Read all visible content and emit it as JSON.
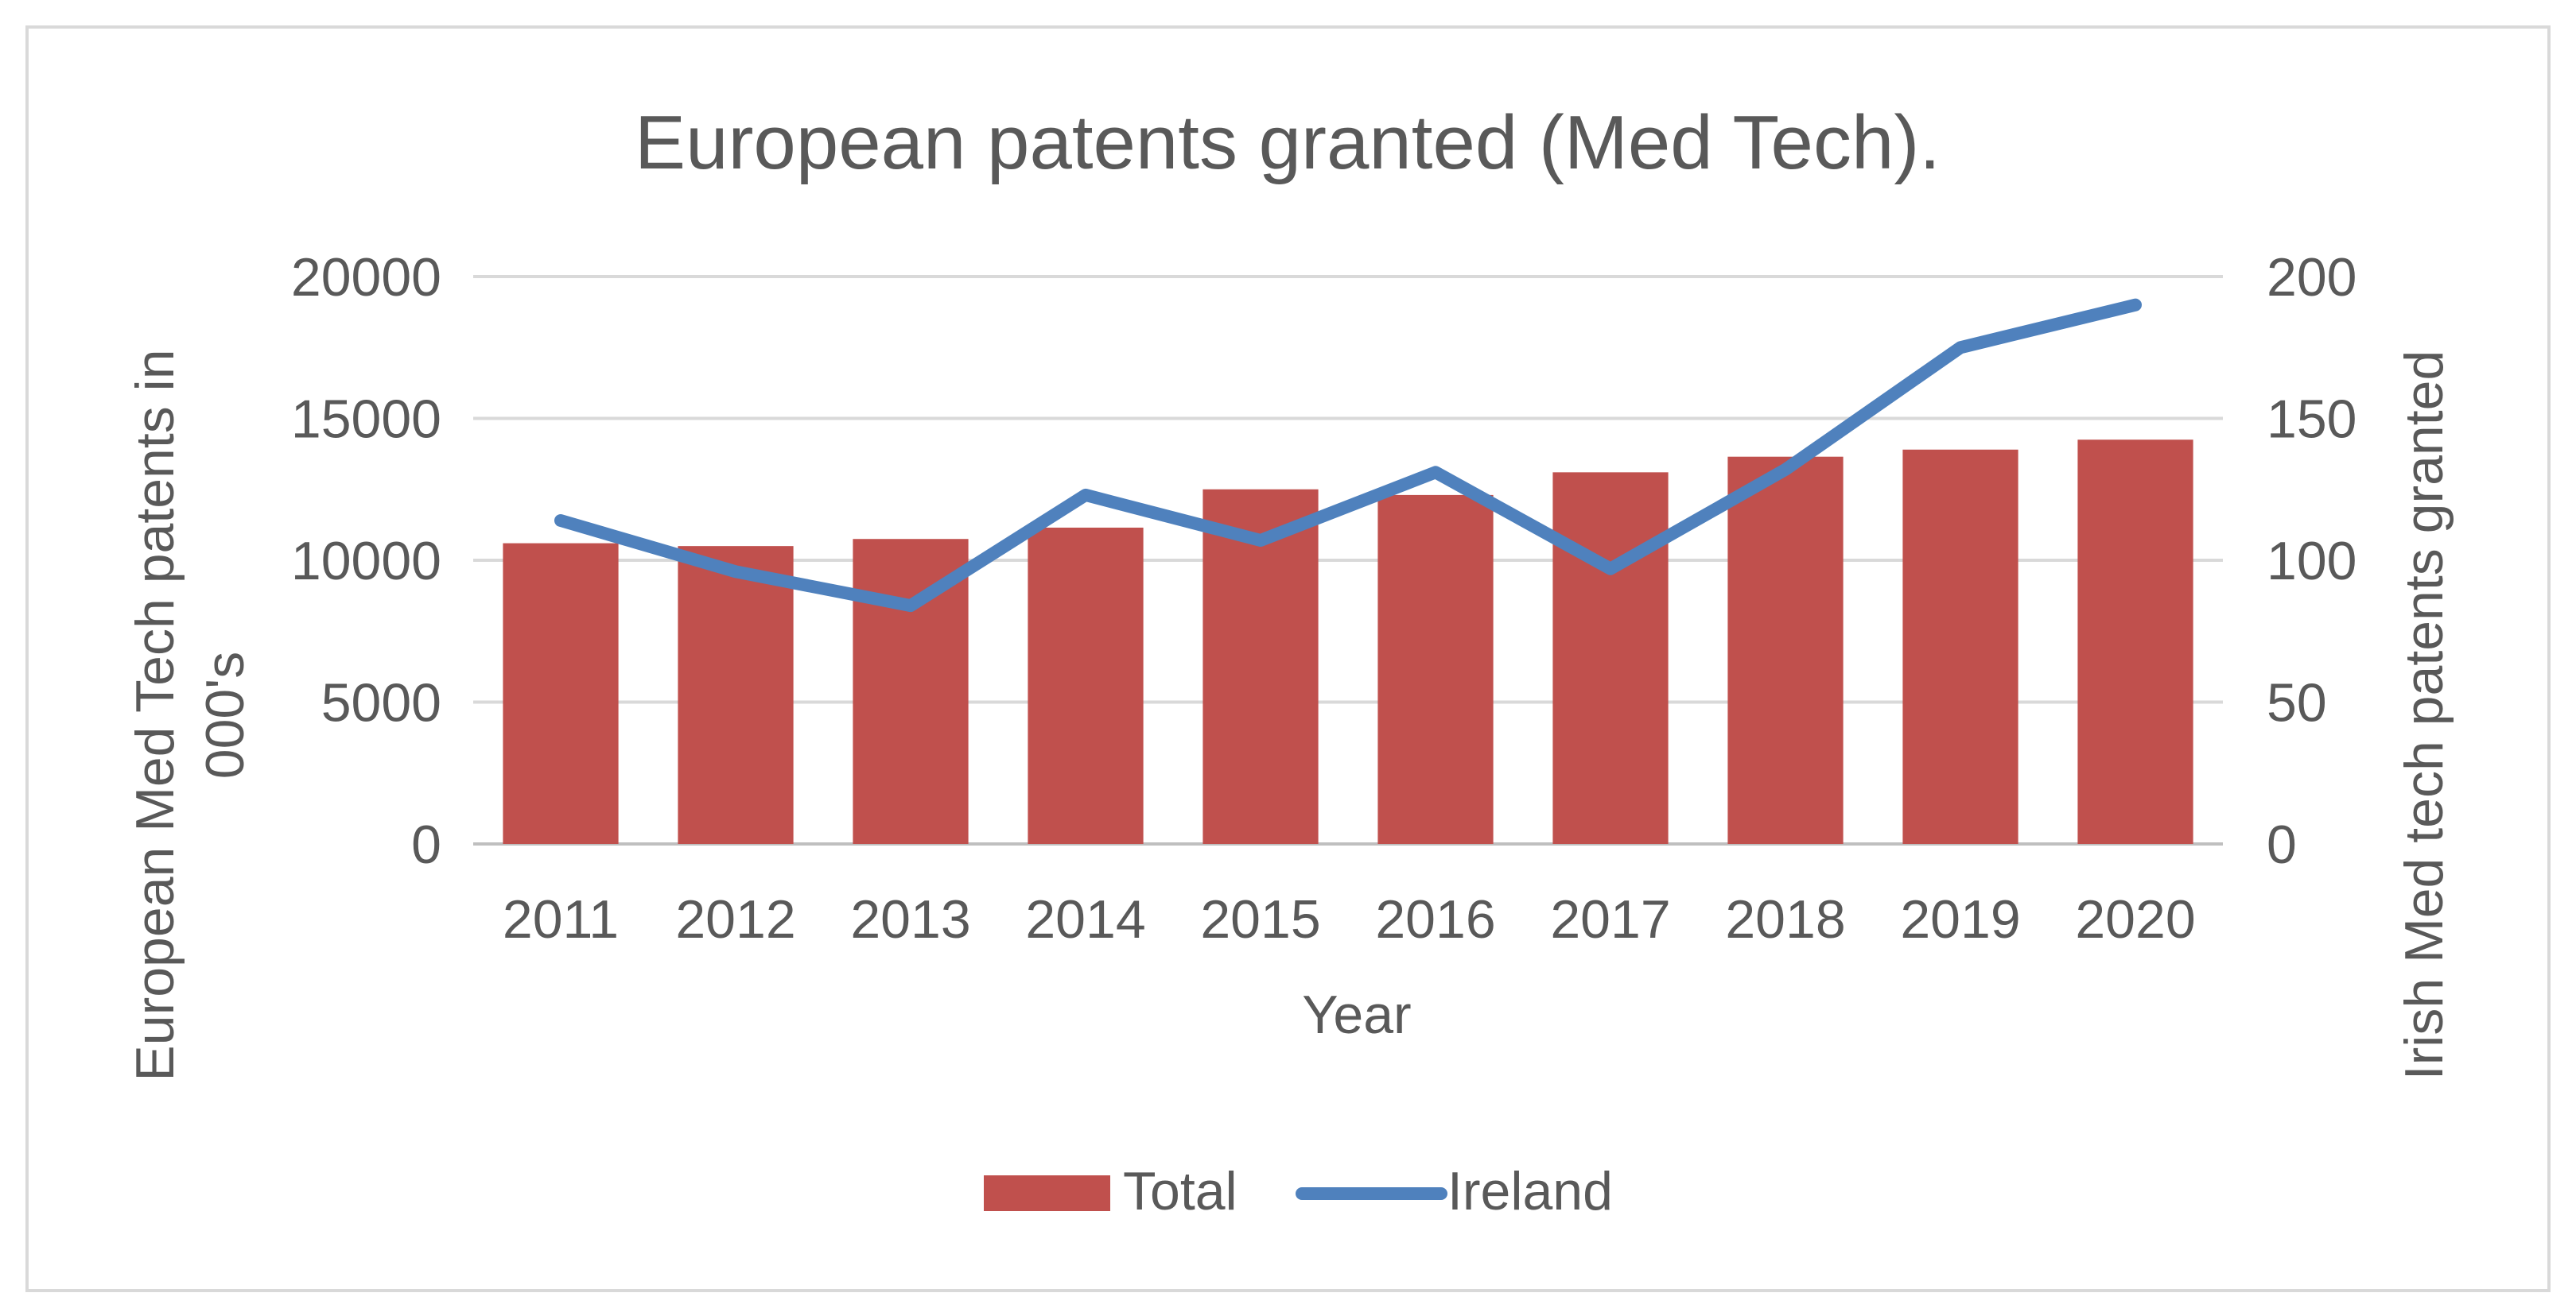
{
  "chart_data": {
    "type": "bar",
    "title": "European patents granted (Med Tech).",
    "xlabel": "Year",
    "ylabel": "European  Med Tech patents in 000's",
    "ylabel_right": "Irish Med tech patents granted",
    "categories": [
      "2011",
      "2012",
      "2013",
      "2014",
      "2015",
      "2016",
      "2017",
      "2018",
      "2019",
      "2020"
    ],
    "series": [
      {
        "name": "Total",
        "type": "bar",
        "axis": "left",
        "color": "#C0504D",
        "values": [
          10600,
          10500,
          10750,
          11150,
          12500,
          12300,
          13100,
          13650,
          13900,
          14250
        ]
      },
      {
        "name": "Ireland",
        "type": "line",
        "axis": "right",
        "color": "#4F81BD",
        "values": [
          114,
          96,
          84,
          123,
          107,
          131,
          97,
          132,
          175,
          190
        ]
      }
    ],
    "ylim": [
      0,
      20000
    ],
    "yticks": [
      "0",
      "5000",
      "10000",
      "15000",
      "20000"
    ],
    "ylim_right": [
      0,
      200
    ],
    "yticks_right": [
      "0",
      "50",
      "100",
      "150",
      "200"
    ],
    "grid": true,
    "legend": "bottom"
  }
}
